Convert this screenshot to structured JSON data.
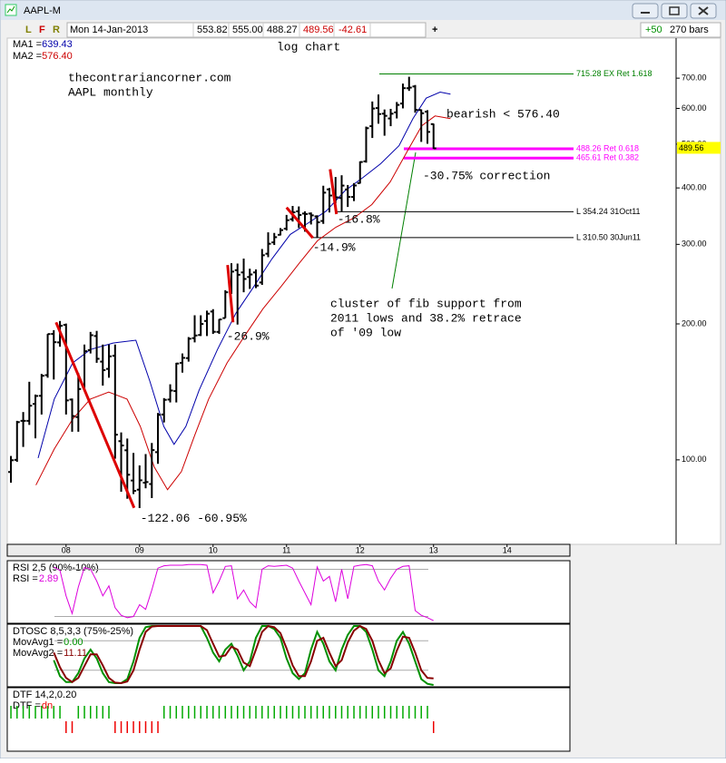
{
  "window": {
    "title": "AAPL-M",
    "toolbar_letters": [
      "L",
      "F",
      "R"
    ],
    "date": "Mon 14-Jan-2013",
    "open": "553.82",
    "high": "555.00",
    "low": "488.27",
    "close": "489.56",
    "change": "-42.61",
    "crosshair": "+",
    "bars_step": "+50",
    "bars": "270 bars"
  },
  "chart_data": [
    {
      "type": "ohlc",
      "subtitle": "log chart",
      "site": "thecontrariancorner.com",
      "description": "AAPL monthly",
      "notes": [
        "bearish < 576.40",
        "-30.75% correction",
        "cluster of fib support from",
        "2011 lows and 38.2% retrace",
        "of '09 low"
      ],
      "color": "#000000",
      "log": true,
      "xlim": [
        2007.2,
        2016.3
      ],
      "xticks": [
        {
          "value": 2008,
          "label": "08"
        },
        {
          "value": 2009,
          "label": "09"
        },
        {
          "value": 2010,
          "label": "10"
        },
        {
          "value": 2011,
          "label": "11"
        },
        {
          "value": 2012,
          "label": "12"
        },
        {
          "value": 2013,
          "label": "13"
        },
        {
          "value": 2014,
          "label": "14"
        }
      ],
      "ylim": [
        65,
        790
      ],
      "yticks": [
        {
          "value": 700,
          "label": "700.00"
        },
        {
          "value": 600,
          "label": "600.00"
        },
        {
          "value": 500,
          "label": "500.00"
        },
        {
          "value": 400,
          "label": "400.00"
        },
        {
          "value": 300,
          "label": "300.00"
        },
        {
          "value": 200,
          "label": "200.00"
        },
        {
          "value": 100,
          "label": "100.00"
        }
      ],
      "x": [
        2007.25,
        2007.333,
        2007.417,
        2007.5,
        2007.583,
        2007.667,
        2007.75,
        2007.833,
        2007.917,
        2008,
        2008.083,
        2008.167,
        2008.25,
        2008.333,
        2008.417,
        2008.5,
        2008.583,
        2008.667,
        2008.75,
        2008.833,
        2008.917,
        2009,
        2009.083,
        2009.167,
        2009.25,
        2009.333,
        2009.417,
        2009.5,
        2009.583,
        2009.667,
        2009.75,
        2009.833,
        2009.917,
        2010,
        2010.083,
        2010.167,
        2010.25,
        2010.333,
        2010.417,
        2010.5,
        2010.583,
        2010.667,
        2010.75,
        2010.833,
        2010.917,
        2011,
        2011.083,
        2011.167,
        2011.25,
        2011.333,
        2011.417,
        2011.5,
        2011.583,
        2011.667,
        2011.75,
        2011.833,
        2011.917,
        2012,
        2012.083,
        2012.167,
        2012.25,
        2012.333,
        2012.417,
        2012.5,
        2012.583,
        2012.667,
        2012.75,
        2012.833,
        2012.917,
        2013
      ],
      "open": [
        94,
        100,
        122,
        122,
        133,
        138.6,
        154,
        190,
        182,
        199,
        136,
        124.4,
        146,
        175,
        188,
        165,
        159,
        170,
        110,
        105,
        90,
        85.9,
        89,
        88.4,
        104,
        126,
        136,
        142,
        164,
        168,
        186,
        189,
        203,
        213,
        192,
        206,
        238,
        263,
        260,
        254,
        260,
        247,
        286,
        303,
        315,
        325,
        341,
        355,
        351,
        351,
        346,
        338,
        397,
        387,
        380,
        397,
        382,
        410,
        458,
        548,
        601,
        584,
        570,
        588,
        615,
        665,
        671,
        595,
        590,
        553.82
      ],
      "high": [
        102,
        122,
        127.6,
        148.9,
        139.5,
        155,
        190,
        193.7,
        203,
        200.3,
        136.7,
        155.6,
        180,
        192,
        193,
        180,
        180,
        180,
        115,
        111.5,
        103.6,
        97.2,
        103,
        109,
        127,
        137,
        147,
        164,
        172,
        187,
        209,
        209,
        214,
        215.6,
        205,
        237.5,
        272.5,
        272,
        279,
        265,
        264,
        293,
        319,
        318,
        326,
        348.6,
        364.9,
        364,
        355,
        353,
        348,
        404.5,
        400,
        422.9,
        426.7,
        406,
        410,
        458,
        546.8,
        621.5,
        644,
        596.7,
        598.6,
        619.9,
        680.9,
        705,
        676,
        597,
        594.6,
        555
      ],
      "low": [
        89,
        99,
        106.8,
        119.5,
        111.6,
        126,
        152,
        150.6,
        178,
        126,
        115.4,
        115.4,
        143,
        172,
        164,
        146,
        152,
        100.6,
        85,
        82,
        84,
        78.2,
        86.5,
        82.3,
        98,
        121,
        134,
        134,
        156,
        165,
        182,
        188,
        188,
        190,
        190,
        206,
        233,
        199.3,
        235,
        239,
        240,
        244,
        281,
        299,
        314,
        322,
        337,
        326,
        320,
        332,
        310.5,
        333,
        353,
        370,
        354.24,
        363,
        374,
        409,
        455,
        516,
        555,
        522,
        548,
        570,
        600,
        656,
        587,
        505.8,
        501,
        488.27
      ],
      "close": [
        99.8,
        121.2,
        122,
        131.8,
        138.5,
        153.5,
        189.9,
        182.2,
        198.1,
        135.4,
        125,
        143.5,
        174,
        188.8,
        167.4,
        158,
        169.5,
        113.7,
        107.6,
        92.7,
        85.4,
        90.1,
        89.3,
        105.1,
        125.8,
        135.8,
        142.4,
        163.4,
        168.2,
        185.4,
        188.5,
        199.9,
        210.7,
        192.1,
        204.6,
        235,
        261.1,
        256.9,
        251.5,
        257.3,
        243.1,
        283.8,
        300.9,
        311.2,
        322.6,
        339.3,
        353.2,
        348.5,
        350.1,
        347.8,
        335.7,
        390.5,
        384.8,
        381.3,
        404.8,
        382.2,
        405,
        456.5,
        542.4,
        599.6,
        583,
        577.7,
        584,
        610.8,
        665.2,
        667.1,
        595.3,
        585.3,
        532.2,
        489.56
      ],
      "series": [
        {
          "label": "MA1 =",
          "readout": "639.43",
          "color": "#0000aa",
          "x": [
            2007.62,
            2007.84,
            2008.09,
            2008.33,
            2008.64,
            2008.95,
            2009.14,
            2009.33,
            2009.47,
            2009.63,
            2009.81,
            2010.06,
            2010.31,
            2010.56,
            2010.8,
            2011.05,
            2011.3,
            2011.54,
            2011.79,
            2012.04,
            2012.28,
            2012.53,
            2012.72,
            2012.9,
            2013.09,
            2013.23
          ],
          "values": [
            100.9,
            136.3,
            163.9,
            175.5,
            181.4,
            184,
            149.4,
            118.6,
            108.2,
            118.6,
            142.6,
            175.5,
            211.1,
            242.5,
            278.5,
            315.5,
            335,
            355.5,
            393.7,
            422,
            452.5,
            496,
            570,
            632,
            652,
            645
          ]
        },
        {
          "label": "MA2 =",
          "readout": "576.40",
          "color": "#cc0000",
          "x": [
            2007.59,
            2007.84,
            2008.09,
            2008.33,
            2008.58,
            2008.83,
            2009.01,
            2009.2,
            2009.38,
            2009.57,
            2009.75,
            2009.94,
            2010.19,
            2010.43,
            2010.68,
            2010.93,
            2011.17,
            2011.42,
            2011.67,
            2011.91,
            2012.16,
            2012.41,
            2012.65,
            2012.84,
            2013.02,
            2013.23
          ],
          "values": [
            87.9,
            105.7,
            123.1,
            136.3,
            141.3,
            136.3,
            118.6,
            96.4,
            85.9,
            94.2,
            113.3,
            136.3,
            163.9,
            188.2,
            216.1,
            242.5,
            272.2,
            305.5,
            327.3,
            342.8,
            367.4,
            412.4,
            484.7,
            549.1,
            577.4,
            569.4
          ]
        }
      ],
      "levels": [
        {
          "value": 715.28,
          "label": "715.28 EX Ret 1.618",
          "color": "#008000"
        },
        {
          "value": 488.26,
          "label": "488.26 Ret 0.618",
          "color": "#ff00ff"
        },
        {
          "value": 465.61,
          "label": "465.61 Ret 0.382",
          "color": "#ff00ff"
        },
        {
          "value": 354.24,
          "label": "L 354.24 31Oct11",
          "color": "#000000"
        },
        {
          "value": 310.5,
          "label": "L 310.50 30Jun11",
          "color": "#000000"
        }
      ],
      "swings": [
        {
          "x": [
            2007.864,
            2008.926
          ],
          "y": [
            201.6,
            78.3
          ],
          "label": "-122.06 -60.95%"
        },
        {
          "x": [
            2010.198,
            2010.272
          ],
          "y": [
            270,
            201.6
          ],
          "label": "-26.9%"
        },
        {
          "x": [
            2011.0,
            2011.358
          ],
          "y": [
            362,
            310
          ],
          "label": "-14.9%"
        },
        {
          "x": [
            2011.593,
            2011.679
          ],
          "y": [
            440,
            350
          ],
          "label": "-16.8%"
        }
      ],
      "swing_color": "#dd0000"
    },
    {
      "type": "line",
      "title": "RSI 2,5 (90%-10%)",
      "ylim": [
        0,
        100
      ],
      "guides": [
        90,
        10
      ],
      "series": [
        {
          "label": "RSI =",
          "readout": "2.89",
          "color": "#dd00dd",
          "values": [
            null,
            null,
            null,
            null,
            null,
            null,
            null,
            94,
            88,
            45,
            15,
            60,
            93,
            90,
            70,
            45,
            62,
            25,
            12,
            8,
            10,
            30,
            22,
            55,
            92,
            96,
            97,
            97,
            97,
            98,
            98,
            98,
            97,
            50,
            70,
            95,
            96,
            40,
            55,
            35,
            25,
            90,
            96,
            95,
            96,
            97,
            92,
            70,
            50,
            30,
            94,
            70,
            78,
            35,
            90,
            40,
            95,
            97,
            98,
            96,
            70,
            55,
            75,
            90,
            95,
            96,
            20,
            12,
            8,
            2.89
          ]
        }
      ]
    },
    {
      "type": "line",
      "title": "DTOSC 8,5,3,3 (75%-25%)",
      "ylim": [
        0,
        100
      ],
      "guides": [
        75,
        25
      ],
      "series": [
        {
          "label": "MovAvg1 =",
          "readout": "0.00",
          "color": "#009000",
          "values": [
            null,
            null,
            null,
            null,
            null,
            null,
            null,
            42,
            15,
            5,
            5,
            20,
            45,
            60,
            45,
            20,
            5,
            3,
            3,
            10,
            40,
            80,
            98,
            100,
            100,
            100,
            100,
            100,
            100,
            100,
            100,
            100,
            80,
            55,
            40,
            60,
            70,
            50,
            25,
            40,
            80,
            100,
            100,
            95,
            80,
            45,
            20,
            10,
            20,
            60,
            90,
            70,
            40,
            25,
            60,
            85,
            100,
            100,
            90,
            60,
            25,
            15,
            40,
            75,
            90,
            70,
            40,
            10,
            2,
            0
          ]
        },
        {
          "label": "MovAvg2 =",
          "readout": "11.11",
          "color": "#880000",
          "values": [
            null,
            null,
            null,
            null,
            null,
            null,
            null,
            55,
            30,
            12,
            5,
            12,
            32,
            52,
            52,
            33,
            12,
            4,
            3,
            6,
            25,
            60,
            90,
            99,
            100,
            100,
            100,
            100,
            100,
            100,
            100,
            100,
            93,
            70,
            48,
            50,
            65,
            60,
            38,
            32,
            60,
            90,
            100,
            98,
            88,
            62,
            33,
            15,
            15,
            40,
            75,
            80,
            55,
            32,
            42,
            72,
            92,
            100,
            95,
            75,
            42,
            20,
            28,
            58,
            82,
            80,
            55,
            25,
            12,
            11.11
          ]
        }
      ]
    },
    {
      "type": "signal",
      "title": "DTF 14,2,0.20",
      "label": "DTF =",
      "readout": "dn",
      "up_color": "#00aa00",
      "dn_color": "#ee0000",
      "values": [
        "up",
        "up",
        "up",
        "up",
        "up",
        "up",
        "up",
        "up",
        "up",
        "dn",
        "dn",
        "up",
        "up",
        "up",
        "up",
        "up",
        "up",
        "dn",
        "dn",
        "dn",
        "dn",
        "dn",
        "dn",
        "dn",
        "dn",
        "up",
        "up",
        "up",
        "up",
        "up",
        "up",
        "up",
        "up",
        "up",
        "up",
        "up",
        "up",
        "up",
        "up",
        "up",
        "up",
        "up",
        "up",
        "up",
        "up",
        "up",
        "up",
        "up",
        "up",
        "up",
        "up",
        "up",
        "up",
        "up",
        "up",
        "up",
        "up",
        "up",
        "up",
        "up",
        "up",
        "up",
        "up",
        "up",
        "up",
        "up",
        "up",
        "up",
        "up",
        "dn"
      ]
    }
  ]
}
